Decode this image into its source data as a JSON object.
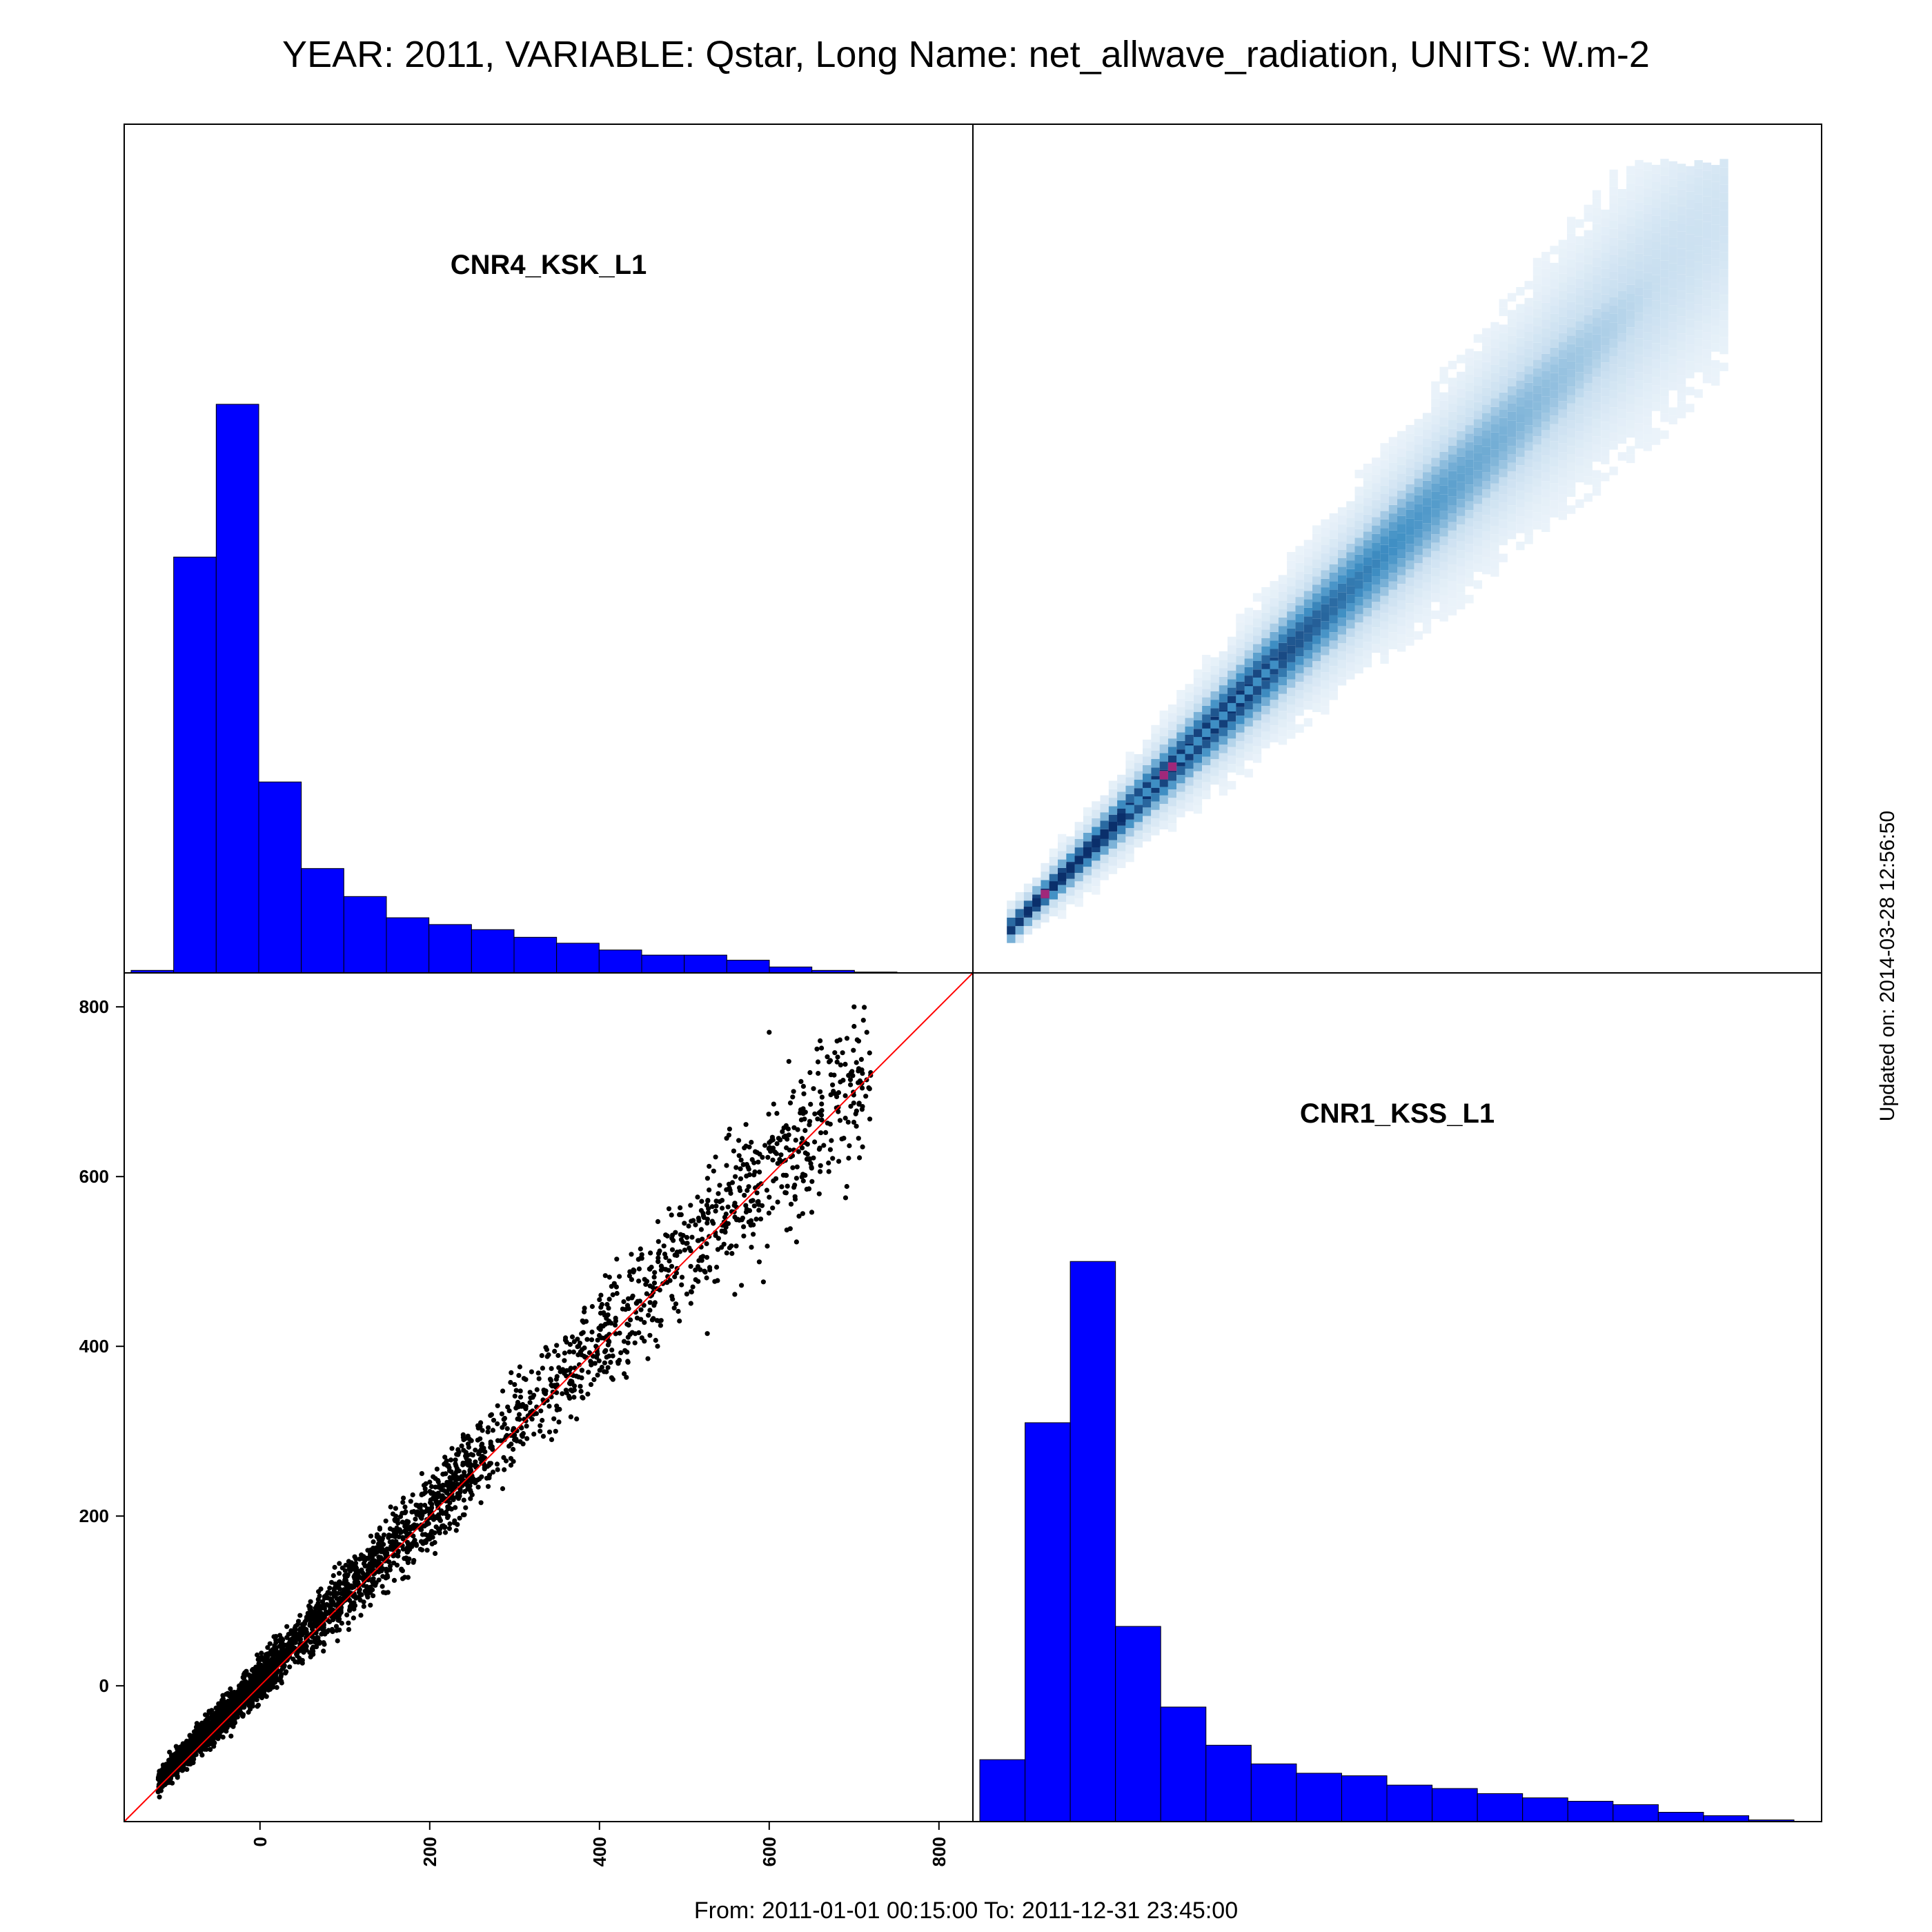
{
  "title": "YEAR: 2011, VARIABLE: Qstar, Long Name: net_allwave_radiation, UNITS: W.m-2",
  "footer": "From: 2011-01-01 00:15:00 To: 2011-12-31 23:45:00",
  "updated": "Updated on: 2014-03-28 12:56:50",
  "colors": {
    "hist_fill": "#0000ff",
    "scatter_point": "#000000",
    "identity_line": "#ff0000",
    "density_low": "#eef5fb",
    "density_mid": "#3f8fc4",
    "density_high": "#0a2f6b",
    "density_peak": "#a0287a"
  },
  "chart_data": [
    {
      "type": "bar",
      "panel": "top-left",
      "label": "CNR4_KSK_L1",
      "bin_edges": [
        -150,
        -100,
        -50,
        0,
        50,
        100,
        150,
        200,
        250,
        300,
        350,
        400,
        450,
        500,
        550,
        600,
        650,
        700,
        750
      ],
      "values": [
        0.3,
        49,
        67,
        22.5,
        12.3,
        9,
        6.5,
        5.7,
        5.1,
        4.2,
        3.5,
        2.7,
        2.1,
        2.1,
        1.5,
        0.7,
        0.3,
        0.1
      ],
      "ylim": [
        0,
        100
      ]
    },
    {
      "type": "heatmap",
      "panel": "top-right",
      "description_colors": [
        "density_low",
        "density_mid",
        "density_high",
        "density_peak"
      ],
      "xlim": [
        -160,
        840
      ],
      "ylim": [
        -160,
        840
      ],
      "relation": "y ≈ x with spread increasing with value",
      "max_value": 800
    },
    {
      "type": "bar",
      "panel": "bottom-right",
      "label": "CNR1_KSS_L1",
      "bin_edges": [
        -150,
        -100,
        -50,
        0,
        50,
        100,
        150,
        200,
        250,
        300,
        350,
        400,
        450,
        500,
        550,
        600,
        650,
        700,
        750
      ],
      "values": [
        7.3,
        47,
        66,
        23,
        13.5,
        9,
        6.8,
        5.7,
        5.4,
        4.3,
        3.9,
        3.3,
        2.8,
        2.4,
        2,
        1.1,
        0.7,
        0.2
      ],
      "ylim": [
        0,
        100
      ]
    },
    {
      "type": "scatter",
      "panel": "bottom-left",
      "xlim": [
        -160,
        840
      ],
      "ylim": [
        -160,
        840
      ],
      "x_ticks": [
        0,
        200,
        400,
        600,
        800
      ],
      "y_ticks": [
        0,
        200,
        400,
        600,
        800
      ],
      "identity_line": [
        [
          -160,
          -160
        ],
        [
          840,
          840
        ]
      ],
      "points_sample": [
        [
          -120,
          -125
        ],
        [
          -110,
          -105
        ],
        [
          -100,
          -95
        ],
        [
          -90,
          -80
        ],
        [
          -80,
          -60
        ],
        [
          -70,
          -75
        ],
        [
          -60,
          -30
        ],
        [
          -50,
          -55
        ],
        [
          -40,
          -10
        ],
        [
          -30,
          -40
        ],
        [
          -20,
          10
        ],
        [
          -10,
          -20
        ],
        [
          0,
          20
        ],
        [
          10,
          -5
        ],
        [
          20,
          40
        ],
        [
          30,
          15
        ],
        [
          40,
          60
        ],
        [
          50,
          30
        ],
        [
          60,
          85
        ],
        [
          70,
          50
        ],
        [
          80,
          110
        ],
        [
          90,
          70
        ],
        [
          100,
          130
        ],
        [
          110,
          95
        ],
        [
          120,
          150
        ],
        [
          130,
          110
        ],
        [
          140,
          175
        ],
        [
          150,
          130
        ],
        [
          160,
          200
        ],
        [
          170,
          150
        ],
        [
          180,
          225
        ],
        [
          190,
          170
        ],
        [
          200,
          240
        ],
        [
          210,
          185
        ],
        [
          220,
          265
        ],
        [
          230,
          210
        ],
        [
          240,
          290
        ],
        [
          250,
          225
        ],
        [
          260,
          310
        ],
        [
          270,
          245
        ],
        [
          280,
          330
        ],
        [
          290,
          265
        ],
        [
          300,
          355
        ],
        [
          310,
          285
        ],
        [
          320,
          370
        ],
        [
          330,
          300
        ],
        [
          340,
          390
        ],
        [
          350,
          325
        ],
        [
          360,
          410
        ],
        [
          370,
          340
        ],
        [
          380,
          430
        ],
        [
          390,
          355
        ],
        [
          400,
          455
        ],
        [
          410,
          375
        ],
        [
          420,
          470
        ],
        [
          430,
          395
        ],
        [
          440,
          490
        ],
        [
          450,
          410
        ],
        [
          460,
          510
        ],
        [
          470,
          430
        ],
        [
          480,
          530
        ],
        [
          490,
          450
        ],
        [
          500,
          545
        ],
        [
          510,
          470
        ],
        [
          520,
          560
        ],
        [
          530,
          490
        ],
        [
          540,
          580
        ],
        [
          550,
          510
        ],
        [
          560,
          600
        ],
        [
          570,
          530
        ],
        [
          580,
          620
        ],
        [
          590,
          550
        ],
        [
          600,
          640
        ],
        [
          610,
          570
        ],
        [
          620,
          660
        ],
        [
          630,
          590
        ],
        [
          640,
          680
        ],
        [
          650,
          610
        ],
        [
          660,
          700
        ],
        [
          680,
          735
        ],
        [
          700,
          800
        ],
        [
          715,
          770
        ],
        [
          710,
          635
        ],
        [
          690,
          575
        ],
        [
          660,
          760
        ],
        [
          600,
          770
        ]
      ]
    }
  ]
}
